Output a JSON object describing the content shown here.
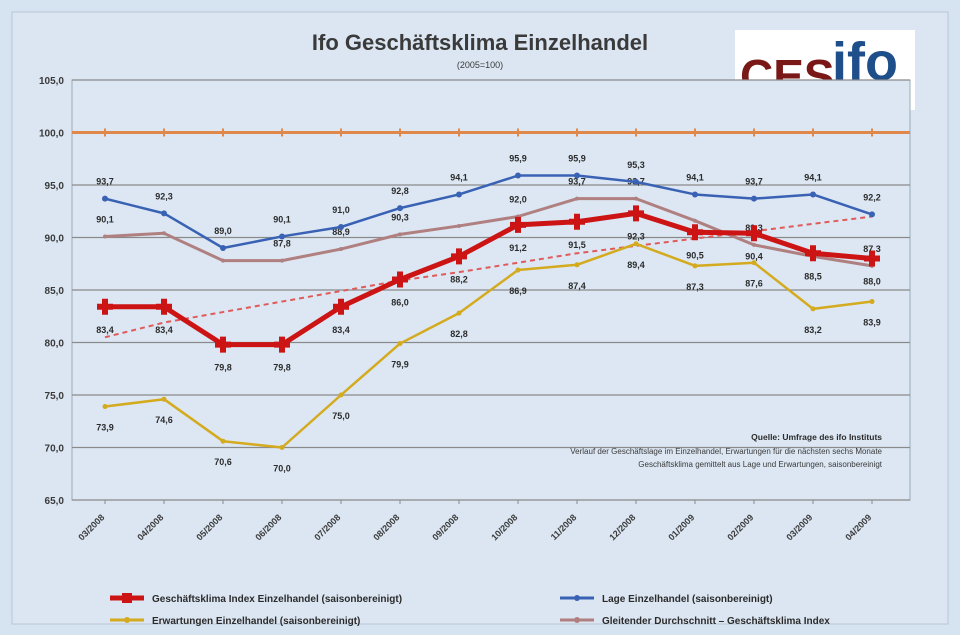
{
  "header": {
    "title": "Ifo Geschäftsklima Einzelhandel",
    "subtitle": "(2005=100)"
  },
  "logo": {
    "part1": "CES",
    "part2": "ifo"
  },
  "source": {
    "line1": "Quelle: Umfrage des ifo Instituts",
    "line2": "Verlauf der Geschäftslage im Einzelhandel, Erwartungen für die nächsten sechs Monate",
    "line3": "Geschäftsklima gemittelt aus Lage und Erwartungen, saisonbereinigt"
  },
  "colors": {
    "klima": "#cc1414",
    "lage": "#3a62b4",
    "erwartungen": "#d4aa1e",
    "gleit": "#b08080",
    "trend": "#e05a5a",
    "ref": "#e0884a",
    "grid": "#8a8a8a"
  },
  "chart_data": {
    "type": "line",
    "title": "Ifo Geschäftsklima Einzelhandel",
    "subtitle": "(2005=100)",
    "categories": [
      "03/2008",
      "04/2008",
      "05/2008",
      "06/2008",
      "07/2008",
      "08/2008",
      "09/2008",
      "10/2008",
      "11/2008",
      "12/2008",
      "01/2009",
      "02/2009",
      "03/2009",
      "04/2009"
    ],
    "ylim": [
      65,
      105
    ],
    "yticks": [
      "65,0",
      "70,0",
      "75,0",
      "80,0",
      "85,0",
      "90,0",
      "95,0",
      "100,0",
      "105,0"
    ],
    "reference_line": 100,
    "series": [
      {
        "name": "Geschäftsklima Index Einzelhandel (saisonbereinigt)",
        "key": "klima",
        "values": [
          83.4,
          83.4,
          79.8,
          79.8,
          83.4,
          86.0,
          88.2,
          91.2,
          91.5,
          92.3,
          90.5,
          90.4,
          88.5,
          88.0
        ],
        "labels": [
          "83,4",
          "83,4",
          "79,8",
          "79,8",
          "83,4",
          "86,0",
          "88,2",
          "91,2",
          "91,5",
          "92,3",
          "90,5",
          "90,4",
          "88,5",
          "88,0"
        ]
      },
      {
        "name": "Lage Einzelhandel (saisonbereinigt)",
        "key": "lage",
        "values": [
          93.7,
          92.3,
          89.0,
          90.1,
          91.0,
          92.8,
          94.1,
          95.9,
          95.9,
          95.3,
          94.1,
          93.7,
          94.1,
          92.2
        ],
        "labels": [
          "93,7",
          "92,3",
          "89,0",
          "90,1",
          "91,0",
          "92,8",
          "94,1",
          "95,9",
          "95,9",
          "95,3",
          "94,1",
          "93,7",
          "94,1",
          "92,2"
        ]
      },
      {
        "name": "Erwartungen Einzelhandel (saisonbereinigt)",
        "key": "erwartungen",
        "values": [
          73.9,
          74.6,
          70.6,
          70.0,
          75.0,
          79.9,
          82.8,
          86.9,
          87.4,
          89.4,
          87.3,
          87.6,
          83.2,
          83.9
        ],
        "labels": [
          "73,9",
          "74,6",
          "70,6",
          "70,0",
          "75,0",
          "79,9",
          "82,8",
          "86,9",
          "87,4",
          "89,4",
          "87,3",
          "87,6",
          "83,2",
          "83,9"
        ]
      },
      {
        "name": "Gleitender Durchschnitt – Geschäftsklima Index",
        "key": "gleit",
        "values": [
          90.1,
          90.4,
          87.8,
          87.8,
          88.9,
          90.3,
          91.1,
          92.0,
          93.7,
          93.7,
          91.6,
          89.3,
          88.2,
          87.3
        ],
        "labels": [
          "90,1",
          "",
          "",
          "87,8",
          "88,9",
          "90,3",
          "",
          "92,0",
          "93,7",
          "93,7",
          "",
          "89,3",
          "",
          "87,3"
        ]
      },
      {
        "name": "Trend",
        "key": "trend",
        "values": [
          80.5,
          81.9,
          82.9,
          83.9,
          84.9,
          85.9,
          86.7,
          87.6,
          88.5,
          89.2,
          89.9,
          90.6,
          91.3,
          92.0
        ],
        "labels": []
      }
    ],
    "legend": {
      "placement": "bottom",
      "items": [
        {
          "key": "klima",
          "label": "Geschäftsklima Index Einzelhandel (saisonbereinigt)"
        },
        {
          "key": "lage",
          "label": "Lage Einzelhandel (saisonbereinigt)"
        },
        {
          "key": "erwartungen",
          "label": "Erwartungen Einzelhandel (saisonbereinigt)"
        },
        {
          "key": "gleit",
          "label": "Gleitender Durchschnitt – Geschäftsklima Index"
        }
      ]
    },
    "grid": true
  }
}
